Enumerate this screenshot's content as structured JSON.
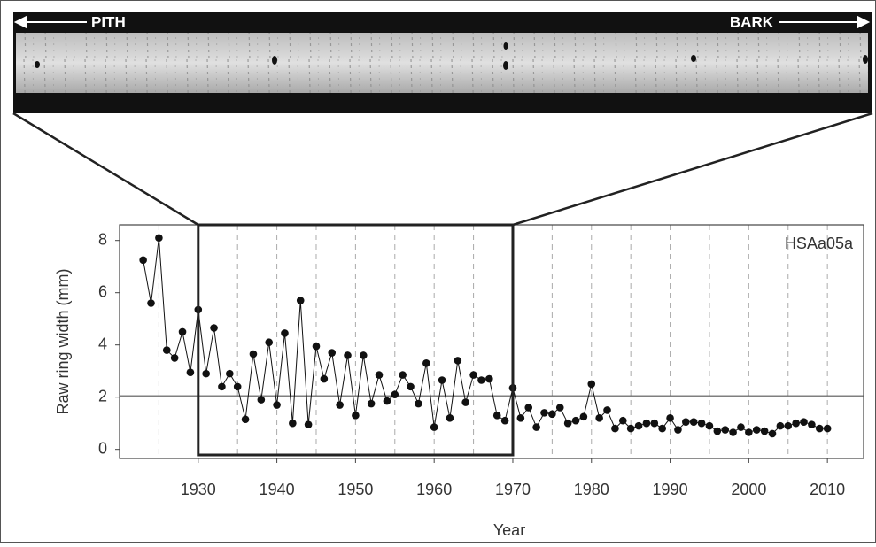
{
  "chart_data": {
    "type": "line",
    "annotations": [
      "PITH",
      "BARK"
    ],
    "x_label": "Year",
    "y_label": "Raw ring width (mm)",
    "x": [
      1923,
      1924,
      1925,
      1926,
      1927,
      1928,
      1929,
      1930,
      1931,
      1932,
      1933,
      1934,
      1935,
      1936,
      1937,
      1938,
      1939,
      1940,
      1941,
      1942,
      1943,
      1944,
      1945,
      1946,
      1947,
      1948,
      1949,
      1950,
      1951,
      1952,
      1953,
      1954,
      1955,
      1956,
      1957,
      1958,
      1959,
      1960,
      1961,
      1962,
      1963,
      1964,
      1965,
      1966,
      1967,
      1968,
      1969,
      1970,
      1971,
      1972,
      1973,
      1974,
      1975,
      1976,
      1977,
      1978,
      1979,
      1980,
      1981,
      1982,
      1983,
      1984,
      1985,
      1986,
      1987,
      1988,
      1989,
      1990,
      1991,
      1992,
      1993,
      1994,
      1995,
      1996,
      1997,
      1998,
      1999,
      2000,
      2001,
      2002,
      2003,
      2004,
      2005,
      2006,
      2007,
      2008,
      2009,
      2010
    ],
    "series": [
      {
        "name": "HSAa05a",
        "color": "#111111",
        "values": [
          7.25,
          5.6,
          8.1,
          3.8,
          3.5,
          4.5,
          2.95,
          5.35,
          2.9,
          4.65,
          2.4,
          2.9,
          2.4,
          1.15,
          3.65,
          1.9,
          4.1,
          1.7,
          4.45,
          1.0,
          5.7,
          0.95,
          3.95,
          2.7,
          3.7,
          1.7,
          3.6,
          1.3,
          3.6,
          1.75,
          2.85,
          1.85,
          2.1,
          2.85,
          2.4,
          1.75,
          3.3,
          0.85,
          2.65,
          1.2,
          3.4,
          1.8,
          2.85,
          2.65,
          2.7,
          1.3,
          1.1,
          2.35,
          1.2,
          1.6,
          0.85,
          1.4,
          1.35,
          1.6,
          1.0,
          1.1,
          1.25,
          2.5,
          1.2,
          1.5,
          0.8,
          1.1,
          0.8,
          0.9,
          1.0,
          1.0,
          0.8,
          1.2,
          0.75,
          1.05,
          1.05,
          1.0,
          0.9,
          0.7,
          0.75,
          0.65,
          0.85,
          0.65,
          0.75,
          0.7,
          0.6,
          0.9,
          0.9,
          1.0,
          1.05,
          0.95,
          0.8,
          0.8
        ]
      }
    ],
    "reference_line": 2.05,
    "highlight_x": [
      1930,
      1970
    ],
    "xlim": [
      1920,
      2014.6
    ],
    "ylim": [
      -0.35,
      8.6
    ],
    "xticks": [
      1930,
      1940,
      1950,
      1960,
      1970,
      1980,
      1990,
      2000,
      2010
    ],
    "x_gridlines": [
      1925,
      1930,
      1935,
      1940,
      1945,
      1950,
      1955,
      1960,
      1965,
      1970,
      1975,
      1980,
      1985,
      1990,
      1995,
      2000,
      2005,
      2010
    ],
    "yticks": [
      0,
      2,
      4,
      6,
      8
    ],
    "grid": true
  }
}
